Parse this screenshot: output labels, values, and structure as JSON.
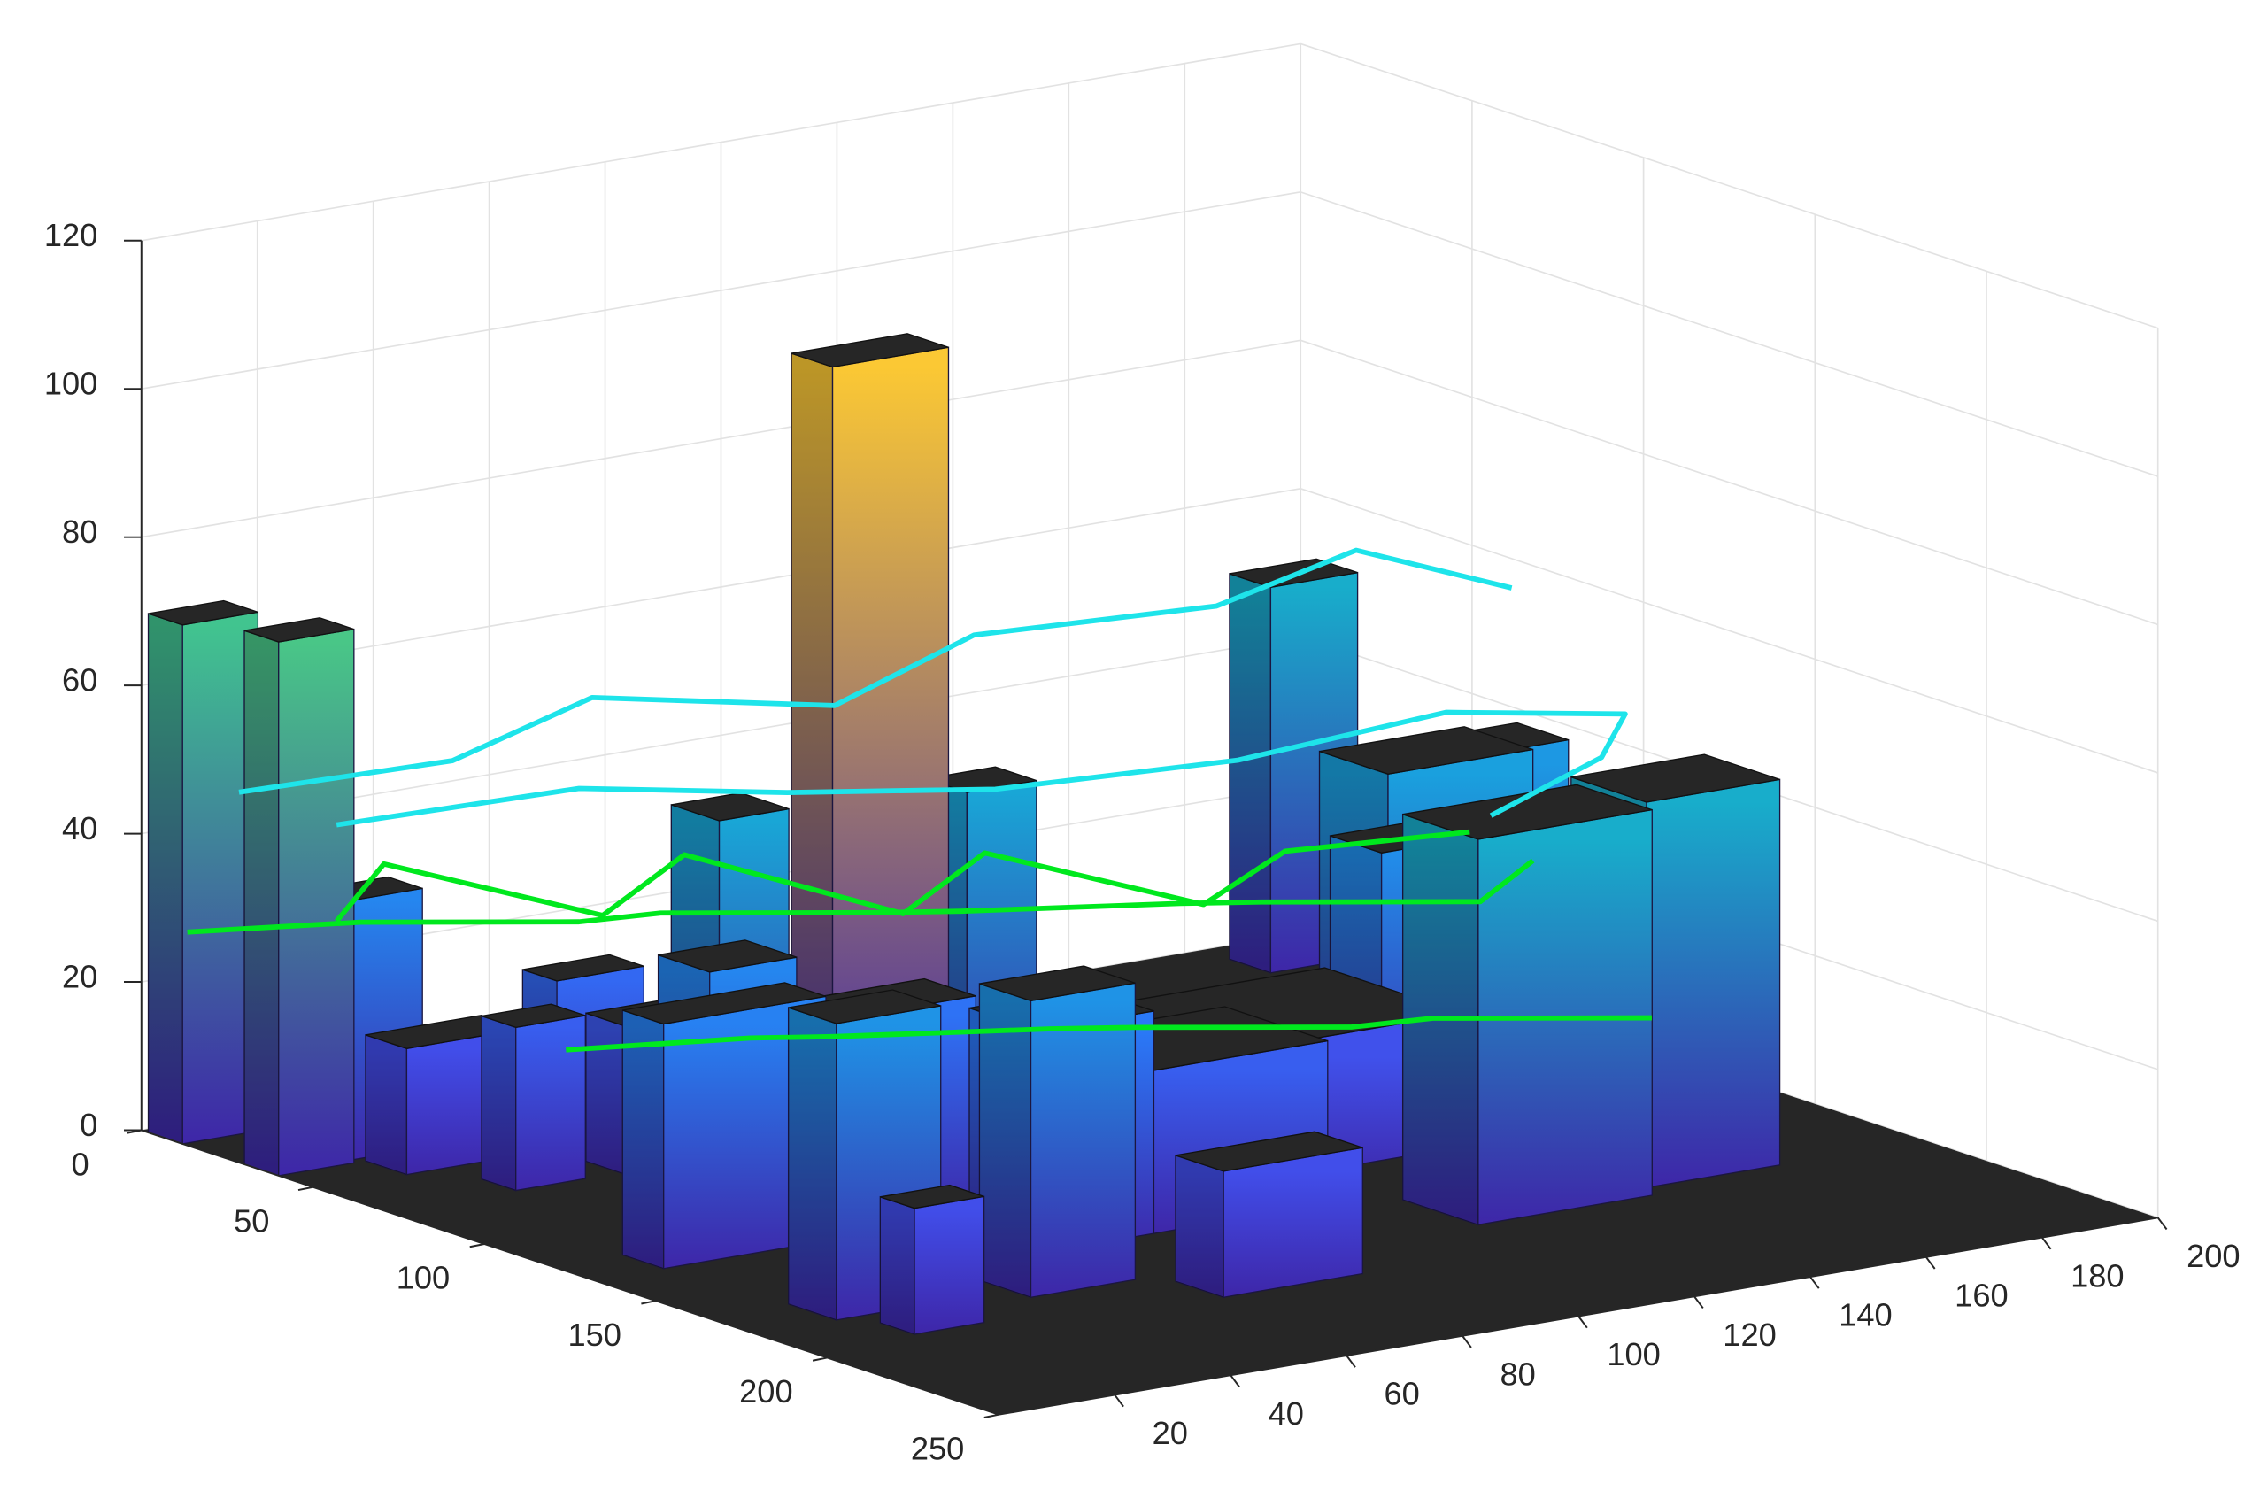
{
  "chart_data": {
    "type": "bar3",
    "xlim": [
      0,
      200
    ],
    "xticks": [
      20,
      40,
      60,
      80,
      100,
      120,
      140,
      160,
      180,
      200
    ],
    "ylim": [
      0,
      250
    ],
    "yticks": [
      0,
      50,
      100,
      150,
      200,
      250
    ],
    "zlim": [
      0,
      120
    ],
    "zticks": [
      0,
      20,
      40,
      60,
      80,
      100,
      120
    ],
    "grid": true,
    "colormap": [
      "#3e26a8",
      "#4547e8",
      "#2a79f7",
      "#1aa0de",
      "#16bcb5",
      "#56c87c",
      "#b6c03c",
      "#fcbb3c",
      "#f9fa15"
    ],
    "buildings": [
      {
        "x": [
          0,
          13
        ],
        "y": [
          2,
          12
        ],
        "h": 70
      },
      {
        "x": [
          0,
          13
        ],
        "y": [
          30,
          40
        ],
        "h": 72
      },
      {
        "x": [
          14,
          24
        ],
        "y": [
          10,
          20
        ],
        "h": 35
      },
      {
        "x": [
          14,
          26
        ],
        "y": [
          28,
          38
        ],
        "h": 35
      },
      {
        "x": [
          15,
          35
        ],
        "y": [
          40,
          52
        ],
        "h": 17
      },
      {
        "x": [
          35,
          50
        ],
        "y": [
          52,
          62
        ],
        "h": 25
      },
      {
        "x": [
          22,
          34
        ],
        "y": [
          62,
          72
        ],
        "h": 22
      },
      {
        "x": [
          40,
          55
        ],
        "y": [
          62,
          76
        ],
        "h": 20
      },
      {
        "x": [
          50,
          62
        ],
        "y": [
          70,
          84
        ],
        "h": 48
      },
      {
        "x": [
          66,
          86
        ],
        "y": [
          78,
          90
        ],
        "h": 108
      },
      {
        "x": [
          88,
          100
        ],
        "y": [
          80,
          92
        ],
        "h": 48
      },
      {
        "x": [
          30,
          45
        ],
        "y": [
          100,
          115
        ],
        "h": 35
      },
      {
        "x": [
          12,
          40
        ],
        "y": [
          120,
          132
        ],
        "h": 33
      },
      {
        "x": [
          50,
          70
        ],
        "y": [
          110,
          125
        ],
        "h": 28
      },
      {
        "x": [
          14,
          32
        ],
        "y": [
          165,
          179
        ],
        "h": 40
      },
      {
        "x": [
          18,
          30
        ],
        "y": [
          185,
          195
        ],
        "h": 17
      },
      {
        "x": [
          44,
          62
        ],
        "y": [
          170,
          185
        ],
        "h": 40
      },
      {
        "x": [
          66,
          90
        ],
        "y": [
          190,
          204
        ],
        "h": 17
      },
      {
        "x": [
          100,
          145
        ],
        "y": [
          100,
          140
        ],
        "h": 18
      },
      {
        "x": [
          140,
          160
        ],
        "y": [
          110,
          125
        ],
        "h": 38
      },
      {
        "x": [
          150,
          175
        ],
        "y": [
          90,
          110
        ],
        "h": 45
      },
      {
        "x": [
          165,
          190
        ],
        "y": [
          80,
          95
        ],
        "h": 42
      },
      {
        "x": [
          183,
          198
        ],
        "y": [
          8,
          20
        ],
        "h": 52
      },
      {
        "x": [
          120,
          150
        ],
        "y": [
          165,
          187
        ],
        "h": 52
      },
      {
        "x": [
          152,
          175
        ],
        "y": [
          160,
          182
        ],
        "h": 52
      },
      {
        "x": [
          80,
          110
        ],
        "y": [
          130,
          160
        ],
        "h": 22
      },
      {
        "x": [
          60,
          80
        ],
        "y": [
          140,
          160
        ],
        "h": 30
      }
    ],
    "series": [
      {
        "color": "#00e81e",
        "x": [
          2,
          20,
          40,
          60,
          80,
          100,
          120,
          140,
          160,
          175
        ],
        "y": [
          10,
          30,
          60,
          50,
          80,
          70,
          100,
          90,
          120,
          110
        ],
        "z": [
          28,
          30,
          32,
          29,
          31,
          27,
          30,
          26,
          28,
          30
        ]
      },
      {
        "color": "#00e81e",
        "x": [
          10,
          30,
          50,
          70,
          90,
          110,
          130,
          150,
          170
        ],
        "y": [
          40,
          20,
          50,
          40,
          70,
          60,
          90,
          80,
          100
        ],
        "z": [
          33,
          35,
          30,
          34,
          28,
          32,
          27,
          30,
          33
        ]
      },
      {
        "color": "#00e81e",
        "x": [
          20,
          40,
          60,
          80,
          100,
          120,
          140,
          160
        ],
        "y": [
          90,
          110,
          100,
          130,
          120,
          150,
          140,
          170
        ],
        "z": [
          22,
          24,
          20,
          23,
          19,
          21,
          18,
          20
        ]
      },
      {
        "color": "#1ee4ea",
        "x": [
          5,
          30,
          60,
          90,
          120,
          150,
          180,
          195
        ],
        "y": [
          20,
          40,
          30,
          50,
          40,
          60,
          50,
          70
        ],
        "z": [
          48,
          52,
          55,
          53,
          57,
          60,
          62,
          58
        ]
      },
      {
        "color": "#1ee4ea",
        "x": [
          10,
          40,
          70,
          100,
          130,
          160,
          185,
          175,
          150
        ],
        "y": [
          40,
          60,
          70,
          80,
          100,
          110,
          120,
          130,
          140
        ],
        "z": [
          46,
          50,
          47,
          45,
          48,
          52,
          50,
          47,
          44
        ]
      }
    ]
  }
}
